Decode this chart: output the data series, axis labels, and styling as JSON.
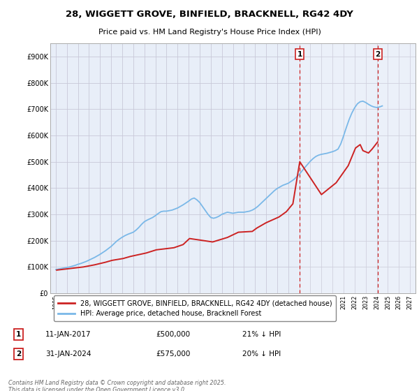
{
  "title": "28, WIGGETT GROVE, BINFIELD, BRACKNELL, RG42 4DY",
  "subtitle": "Price paid vs. HM Land Registry's House Price Index (HPI)",
  "background_color": "#ffffff",
  "plot_bg_color": "#e8eef8",
  "grid_color": "#c8c8d8",
  "ylim": [
    0,
    950000
  ],
  "yticks": [
    0,
    100000,
    200000,
    300000,
    400000,
    500000,
    600000,
    700000,
    800000,
    900000
  ],
  "ytick_labels": [
    "£0",
    "£100K",
    "£200K",
    "£300K",
    "£400K",
    "£500K",
    "£600K",
    "£700K",
    "£800K",
    "£900K"
  ],
  "hpi_color": "#7ab8e8",
  "house_color": "#cc2222",
  "vline_color": "#cc2222",
  "legend_line1": "28, WIGGETT GROVE, BINFIELD, BRACKNELL, RG42 4DY (detached house)",
  "legend_line2": "HPI: Average price, detached house, Bracknell Forest",
  "footer": "Contains HM Land Registry data © Crown copyright and database right 2025.\nThis data is licensed under the Open Government Licence v3.0.",
  "xlim": [
    1994.5,
    2027.5
  ],
  "xticks": [
    1995,
    1996,
    1997,
    1998,
    1999,
    2000,
    2001,
    2002,
    2003,
    2004,
    2005,
    2006,
    2007,
    2008,
    2009,
    2010,
    2011,
    2012,
    2013,
    2014,
    2015,
    2016,
    2017,
    2018,
    2019,
    2020,
    2021,
    2022,
    2023,
    2024,
    2025,
    2026,
    2027
  ],
  "marker1_x": 2017.04,
  "marker2_x": 2024.08,
  "hpi_x": [
    1995,
    1995.25,
    1995.5,
    1995.75,
    1996,
    1996.25,
    1996.5,
    1996.75,
    1997,
    1997.25,
    1997.5,
    1997.75,
    1998,
    1998.25,
    1998.5,
    1998.75,
    1999,
    1999.25,
    1999.5,
    1999.75,
    2000,
    2000.25,
    2000.5,
    2000.75,
    2001,
    2001.25,
    2001.5,
    2001.75,
    2002,
    2002.25,
    2002.5,
    2002.75,
    2003,
    2003.25,
    2003.5,
    2003.75,
    2004,
    2004.25,
    2004.5,
    2004.75,
    2005,
    2005.25,
    2005.5,
    2005.75,
    2006,
    2006.25,
    2006.5,
    2006.75,
    2007,
    2007.25,
    2007.5,
    2007.75,
    2008,
    2008.25,
    2008.5,
    2008.75,
    2009,
    2009.25,
    2009.5,
    2009.75,
    2010,
    2010.25,
    2010.5,
    2010.75,
    2011,
    2011.25,
    2011.5,
    2011.75,
    2012,
    2012.25,
    2012.5,
    2012.75,
    2013,
    2013.25,
    2013.5,
    2013.75,
    2014,
    2014.25,
    2014.5,
    2014.75,
    2015,
    2015.25,
    2015.5,
    2015.75,
    2016,
    2016.25,
    2016.5,
    2016.75,
    2017,
    2017.25,
    2017.5,
    2017.75,
    2018,
    2018.25,
    2018.5,
    2018.75,
    2019,
    2019.25,
    2019.5,
    2019.75,
    2020,
    2020.25,
    2020.5,
    2020.75,
    2021,
    2021.25,
    2021.5,
    2021.75,
    2022,
    2022.25,
    2022.5,
    2022.75,
    2023,
    2023.25,
    2023.5,
    2023.75,
    2024,
    2024.25,
    2024.5
  ],
  "hpi_y": [
    90000,
    92000,
    94000,
    96000,
    98000,
    100000,
    103000,
    106000,
    110000,
    113000,
    117000,
    121000,
    126000,
    131000,
    136000,
    142000,
    148000,
    155000,
    162000,
    170000,
    178000,
    188000,
    198000,
    206000,
    213000,
    219000,
    224000,
    228000,
    232000,
    240000,
    250000,
    262000,
    272000,
    278000,
    283000,
    288000,
    295000,
    303000,
    310000,
    312000,
    312000,
    314000,
    316000,
    320000,
    324000,
    330000,
    336000,
    343000,
    350000,
    358000,
    362000,
    355000,
    345000,
    330000,
    315000,
    300000,
    288000,
    285000,
    288000,
    293000,
    300000,
    304000,
    308000,
    306000,
    304000,
    306000,
    308000,
    308000,
    308000,
    310000,
    312000,
    316000,
    322000,
    330000,
    340000,
    350000,
    360000,
    370000,
    380000,
    390000,
    398000,
    404000,
    410000,
    414000,
    418000,
    425000,
    432000,
    442000,
    452000,
    465000,
    478000,
    490000,
    502000,
    512000,
    520000,
    525000,
    528000,
    530000,
    532000,
    535000,
    538000,
    542000,
    548000,
    568000,
    598000,
    630000,
    660000,
    685000,
    705000,
    720000,
    728000,
    730000,
    725000,
    718000,
    712000,
    708000,
    706000,
    708000,
    712000
  ],
  "house_x": [
    1995.08,
    1997.5,
    1998.5,
    1999.5,
    2000.08,
    2001.08,
    2001.75,
    2003.17,
    2004.08,
    2005.67,
    2006.5,
    2007.08,
    2009.17,
    2010.5,
    2011.5,
    2012.75,
    2013.17,
    2014.0,
    2015.17,
    2015.83,
    2016.42,
    2017.04,
    2019.0,
    2020.33,
    2021.42,
    2022.08,
    2022.5,
    2022.75,
    2023.25,
    2023.58,
    2024.08
  ],
  "house_y": [
    88000,
    100000,
    108000,
    118000,
    125000,
    132000,
    140000,
    153000,
    165000,
    173000,
    185000,
    208000,
    195000,
    212000,
    232000,
    235000,
    248000,
    268000,
    290000,
    310000,
    340000,
    500000,
    375000,
    420000,
    485000,
    552000,
    565000,
    542000,
    533000,
    548000,
    575000
  ]
}
